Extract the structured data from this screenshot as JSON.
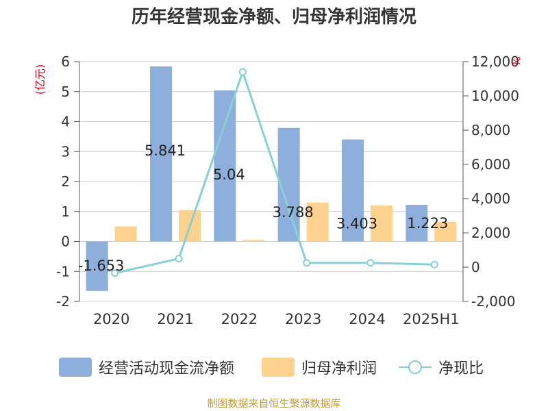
{
  "title": "历年经营现金净额、归母净利润情况",
  "source": "制图数据来自恒生聚源数据库",
  "colors": {
    "cash_flow": "#8eaedc",
    "net_profit": "#fdd28f",
    "ratio": "#88d0d4",
    "axis": "#555555",
    "grid": "#cccccc",
    "unit_label": "#d0021b"
  },
  "chart_data": {
    "type": "bar",
    "categories": [
      "2020",
      "2021",
      "2022",
      "2023",
      "2024",
      "2025H1"
    ],
    "left_axis": {
      "unit": "(亿元)",
      "ylim": [
        -2,
        6
      ],
      "ticks": [
        "-2",
        "-1",
        "0",
        "1",
        "2",
        "3",
        "4",
        "5",
        "6"
      ]
    },
    "right_axis": {
      "unit": "%",
      "ylim": [
        -2000,
        12000
      ],
      "ticks": [
        "-2,000",
        "0",
        "2,000",
        "4,000",
        "6,000",
        "8,000",
        "10,000",
        "12,000"
      ]
    },
    "series": [
      {
        "name": "经营活动现金流净额",
        "type": "bar",
        "axis": "left",
        "values": [
          -1.653,
          5.841,
          5.04,
          3.788,
          3.403,
          1.223
        ],
        "labels": [
          "-1.653",
          "5.841",
          "5.04",
          "3.788",
          "3.403",
          "1.223"
        ]
      },
      {
        "name": "归母净利润",
        "type": "bar",
        "axis": "left",
        "values": [
          0.5,
          1.05,
          0.05,
          1.3,
          1.2,
          0.65
        ]
      },
      {
        "name": "净现比",
        "type": "line",
        "axis": "right",
        "values": [
          -350,
          500,
          11400,
          250,
          250,
          150
        ]
      }
    ],
    "grid": true,
    "legend_position": "bottom"
  }
}
